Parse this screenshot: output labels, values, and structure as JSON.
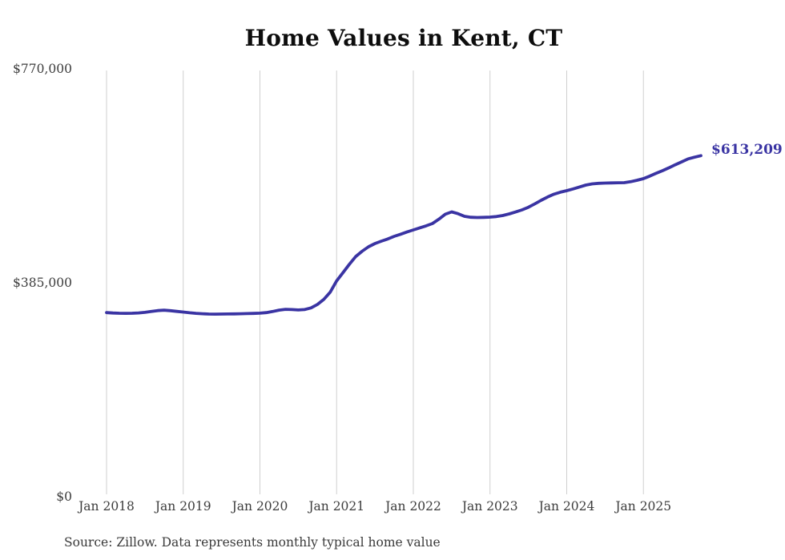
{
  "page": {
    "title": "Home Values in Kent, CT",
    "source_note": "Source: Zillow. Data represents monthly typical home value"
  },
  "colors": {
    "line": "#3a34a3",
    "grid": "#cfcfcf",
    "axis_text": "#3c3c3c",
    "background": "#ffffff"
  },
  "chart_data": {
    "type": "line",
    "title": "Home Values in Kent, CT",
    "series_name": "Monthly typical home value (Zillow)",
    "start_month": "2018-01",
    "end_month": "2025-10",
    "ylim": [
      0,
      770000
    ],
    "grid": "vertical-only",
    "legend": "none",
    "end_label": "$613,209",
    "last_value": 613209,
    "y_ticks": [
      {
        "label": "$0",
        "value": 0
      },
      {
        "label": "$385,000",
        "value": 385000
      },
      {
        "label": "$770,000",
        "value": 770000
      }
    ],
    "x_tick_labels": [
      "Jan 2018",
      "Jan 2019",
      "Jan 2020",
      "Jan 2021",
      "Jan 2022",
      "Jan 2023",
      "Jan 2024",
      "Jan 2025"
    ],
    "values": [
      331000,
      330400,
      329900,
      329700,
      329900,
      330500,
      331500,
      333000,
      334700,
      335300,
      334500,
      333200,
      332000,
      330800,
      329800,
      329000,
      328500,
      328300,
      328400,
      328600,
      328800,
      329000,
      329300,
      329600,
      330000,
      331000,
      333000,
      335500,
      337000,
      336500,
      335800,
      336500,
      339500,
      345700,
      355000,
      368000,
      388000,
      403000,
      418000,
      432000,
      441500,
      449500,
      455200,
      459500,
      463500,
      468200,
      472000,
      476000,
      479700,
      483500,
      487000,
      491200,
      499000,
      508000,
      512100,
      509000,
      504200,
      502500,
      502000,
      502300,
      502800,
      503800,
      505700,
      508500,
      512000,
      515700,
      520500,
      526500,
      533000,
      539000,
      544000,
      547500,
      550300,
      553500,
      557000,
      560400,
      562500,
      563500,
      564000,
      564300,
      564500,
      564700,
      566500,
      569000,
      571900,
      576500,
      581500,
      586300,
      591500,
      597000,
      602200,
      607500,
      610500,
      613209
    ]
  }
}
